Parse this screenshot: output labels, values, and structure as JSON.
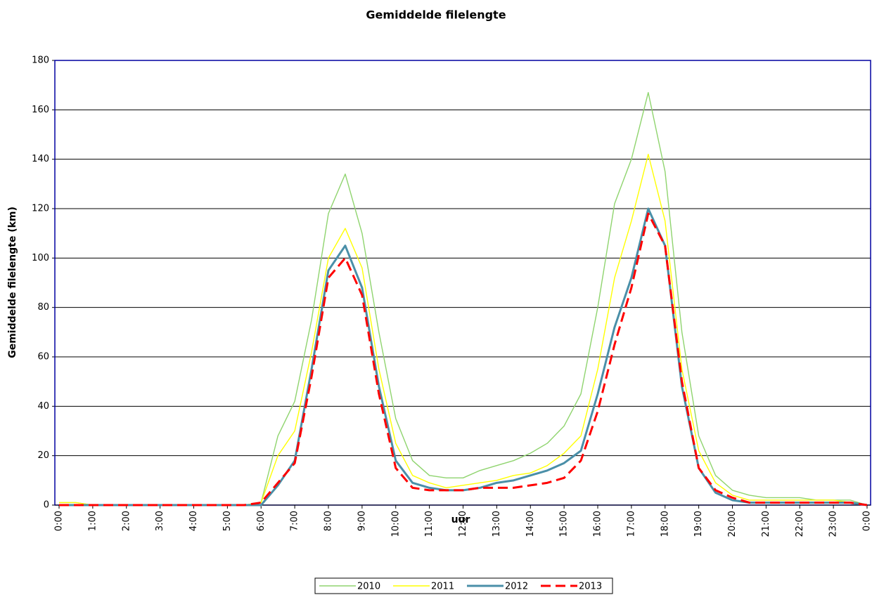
{
  "chart_data": {
    "type": "line",
    "title": "Gemiddelde filelengte",
    "x_label": "uur",
    "y_label": "Gemiddelde filelengte (km)",
    "x": [
      0,
      0.5,
      1,
      1.5,
      2,
      2.5,
      3,
      3.5,
      4,
      4.5,
      5,
      5.5,
      6,
      6.5,
      7,
      7.5,
      8,
      8.5,
      9,
      9.5,
      10,
      10.5,
      11,
      11.5,
      12,
      12.5,
      13,
      13.5,
      14,
      14.5,
      15,
      15.5,
      16,
      16.5,
      17,
      17.5,
      18,
      18.5,
      19,
      19.5,
      20,
      20.5,
      21,
      21.5,
      22,
      22.5,
      23,
      23.5,
      24
    ],
    "series": [
      {
        "name": "2010",
        "color": "#8fd46e",
        "dashed": false,
        "values": [
          1,
          1,
          0,
          0,
          0,
          0,
          0,
          0,
          0,
          0,
          0,
          0,
          1,
          28,
          42,
          75,
          118,
          134,
          110,
          70,
          35,
          18,
          12,
          11,
          11,
          14,
          16,
          18,
          21,
          25,
          32,
          45,
          80,
          122,
          140,
          167,
          135,
          70,
          28,
          12,
          6,
          4,
          3,
          3,
          3,
          2,
          2,
          2,
          0
        ]
      },
      {
        "name": "2011",
        "color": "#ffff00",
        "dashed": false,
        "values": [
          1,
          1,
          0,
          0,
          0,
          0,
          0,
          0,
          0,
          0,
          0,
          0,
          1,
          20,
          30,
          62,
          100,
          112,
          96,
          55,
          25,
          12,
          9,
          7,
          8,
          9,
          10,
          12,
          13,
          16,
          21,
          28,
          55,
          92,
          115,
          142,
          115,
          55,
          22,
          9,
          4,
          2,
          2,
          2,
          2,
          2,
          2,
          1,
          0
        ]
      },
      {
        "name": "2012",
        "color": "#4a8fa8",
        "dashed": false,
        "values": [
          0,
          0,
          0,
          0,
          0,
          0,
          0,
          0,
          0,
          0,
          0,
          0,
          0,
          8,
          18,
          55,
          95,
          105,
          88,
          48,
          18,
          9,
          7,
          6,
          6,
          7,
          9,
          10,
          12,
          14,
          17,
          22,
          45,
          72,
          92,
          120,
          105,
          48,
          15,
          5,
          2,
          1,
          1,
          1,
          1,
          1,
          1,
          1,
          0
        ]
      },
      {
        "name": "2013",
        "color": "#ff0000",
        "dashed": true,
        "values": [
          0,
          0,
          0,
          0,
          0,
          0,
          0,
          0,
          0,
          0,
          0,
          0,
          1,
          9,
          17,
          52,
          92,
          100,
          85,
          45,
          15,
          7,
          6,
          6,
          6,
          7,
          7,
          7,
          8,
          9,
          11,
          18,
          38,
          65,
          88,
          118,
          105,
          50,
          15,
          6,
          3,
          1,
          1,
          1,
          1,
          1,
          1,
          1,
          0
        ]
      }
    ],
    "xlim": [
      0,
      24
    ],
    "xticks": [
      {
        "value": 0,
        "label": "0:00"
      },
      {
        "value": 1,
        "label": "1:00"
      },
      {
        "value": 2,
        "label": "2:00"
      },
      {
        "value": 3,
        "label": "3:00"
      },
      {
        "value": 4,
        "label": "4:00"
      },
      {
        "value": 5,
        "label": "5:00"
      },
      {
        "value": 6,
        "label": "6:00"
      },
      {
        "value": 7,
        "label": "7:00"
      },
      {
        "value": 8,
        "label": "8:00"
      },
      {
        "value": 9,
        "label": "9:00"
      },
      {
        "value": 10,
        "label": "10:00"
      },
      {
        "value": 11,
        "label": "11:00"
      },
      {
        "value": 12,
        "label": "12:00"
      },
      {
        "value": 13,
        "label": "13:00"
      },
      {
        "value": 14,
        "label": "14:00"
      },
      {
        "value": 15,
        "label": "15:00"
      },
      {
        "value": 16,
        "label": "16:00"
      },
      {
        "value": 17,
        "label": "17:00"
      },
      {
        "value": 18,
        "label": "18:00"
      },
      {
        "value": 19,
        "label": "19:00"
      },
      {
        "value": 20,
        "label": "20:00"
      },
      {
        "value": 21,
        "label": "21:00"
      },
      {
        "value": 22,
        "label": "22:00"
      },
      {
        "value": 23,
        "label": "23:00"
      },
      {
        "value": 24,
        "label": "0:00"
      }
    ],
    "ylim": [
      0,
      180
    ],
    "yticks": [
      0,
      20,
      40,
      60,
      80,
      100,
      120,
      140,
      160,
      180
    ],
    "grid": true,
    "legend": "bottom"
  }
}
